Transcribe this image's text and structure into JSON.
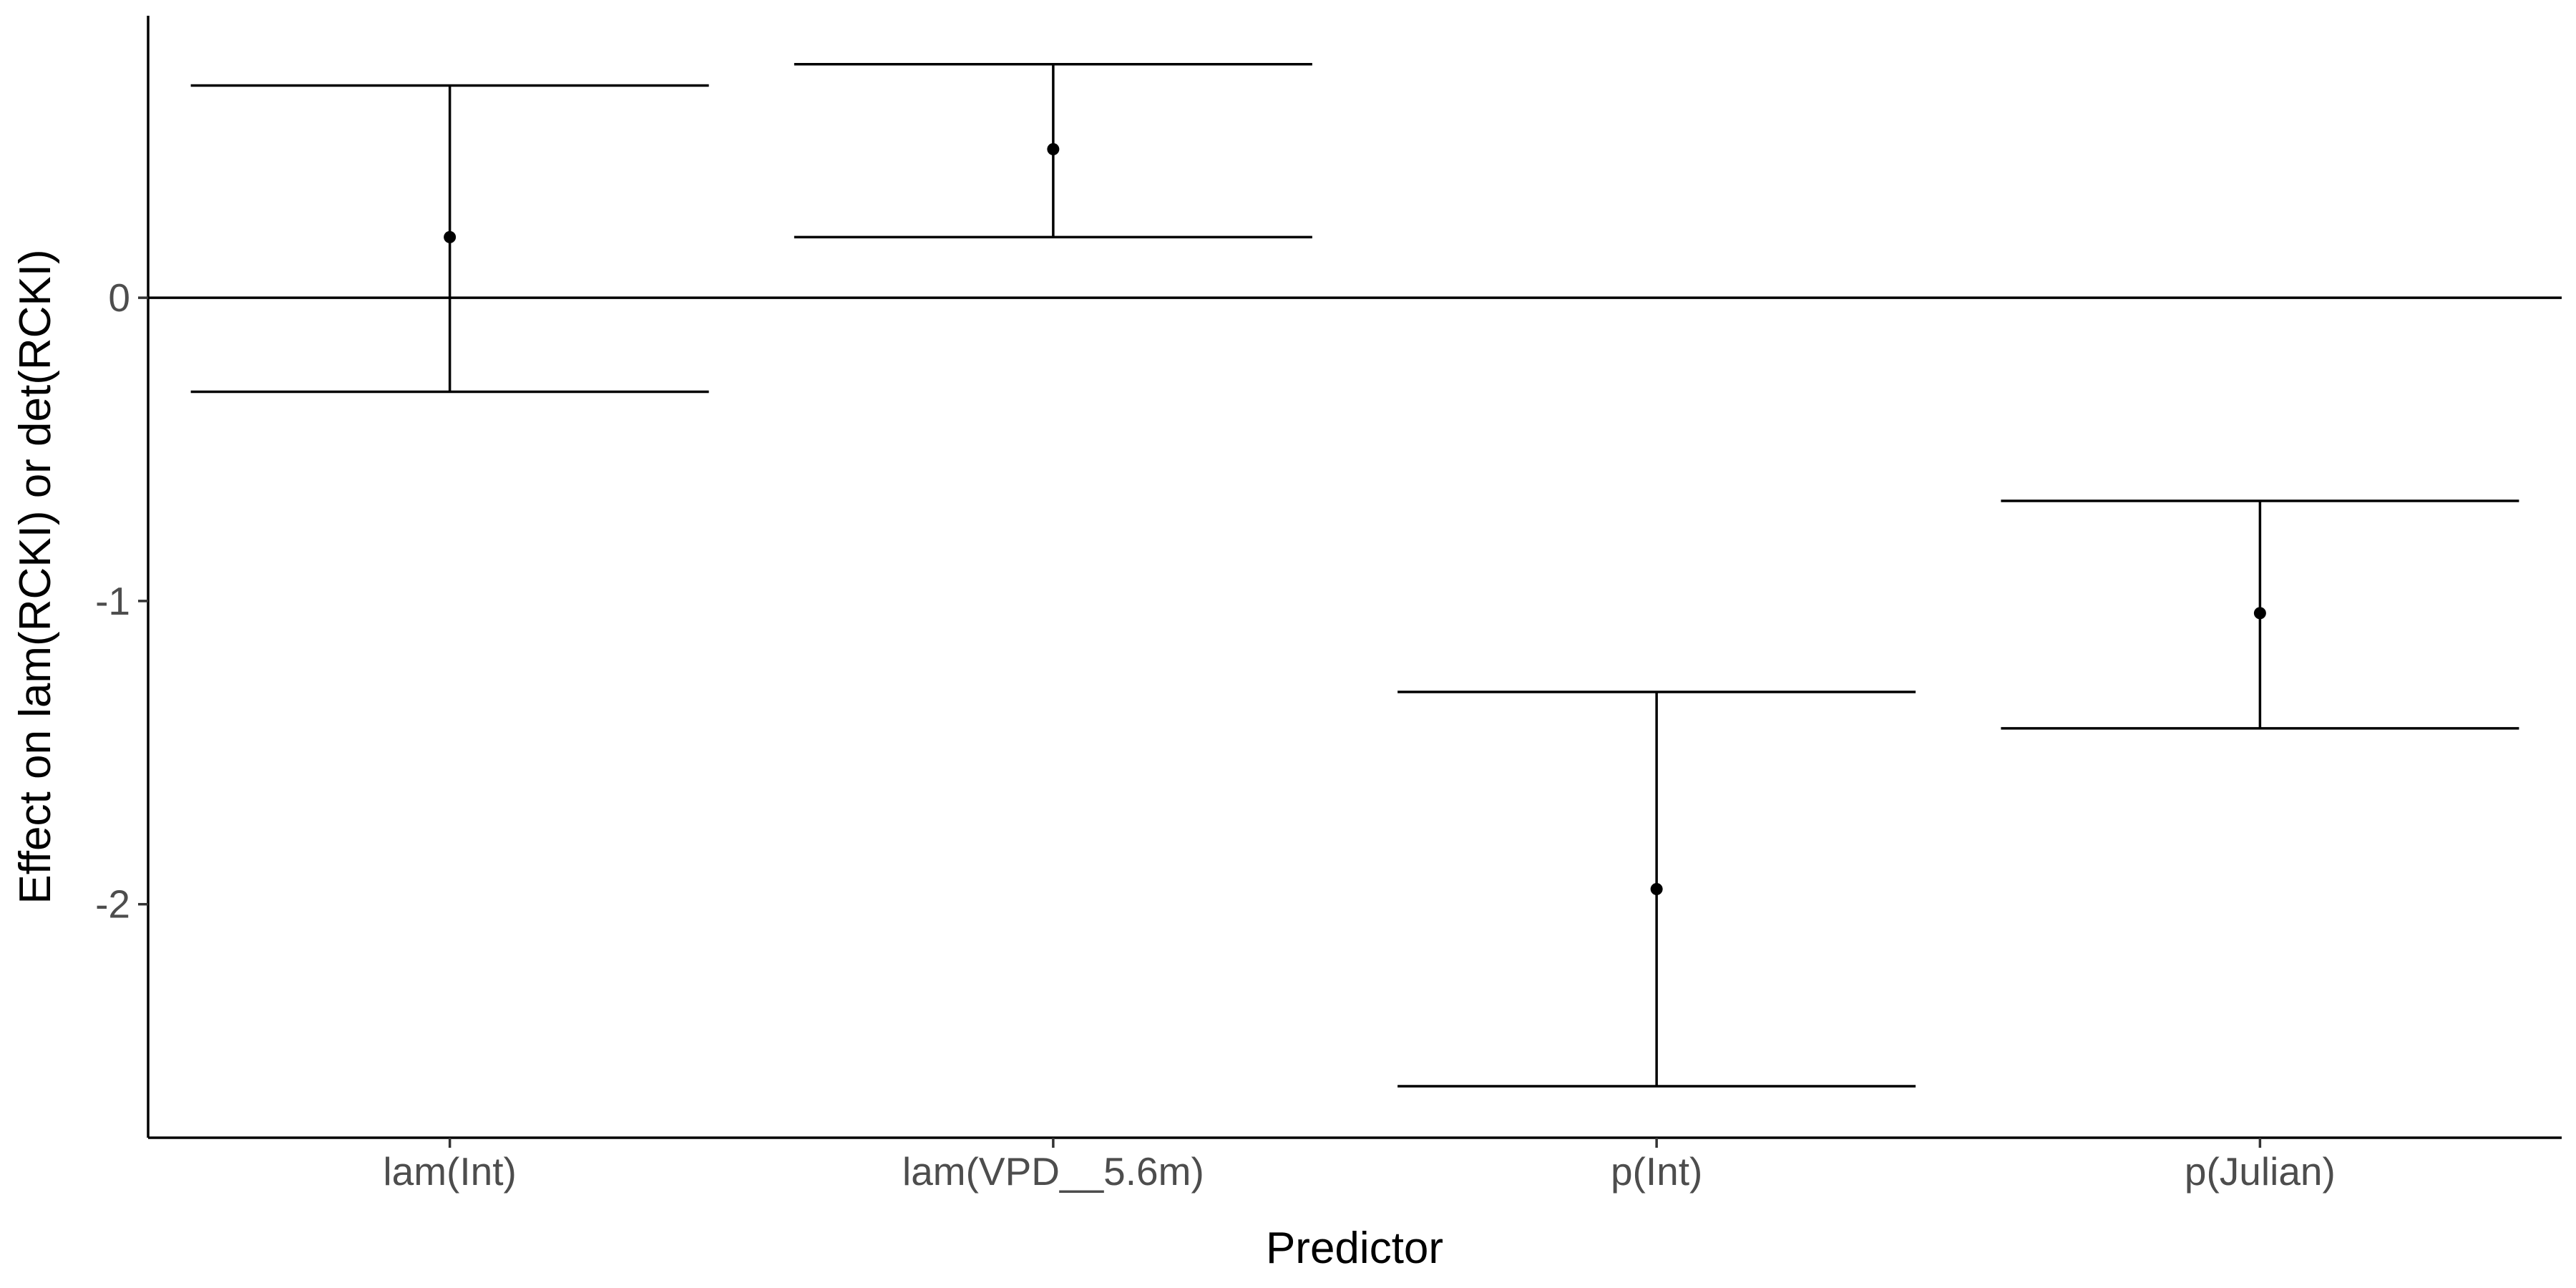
{
  "chart_data": {
    "type": "errorbar",
    "xlabel": "Predictor",
    "ylabel": "Effect on lam(RCKI) or det(RCKI)",
    "ylim": [
      -2.77,
      0.93
    ],
    "yticks": [
      0,
      -1,
      -2
    ],
    "reference_line": 0,
    "grid": false,
    "categories": [
      "lam(Int)",
      "lam(VPD__5.6m)",
      "p(Int)",
      "p(Julian)"
    ],
    "estimates": [
      0.2,
      0.49,
      -1.95,
      -1.04
    ],
    "lower": [
      -0.31,
      0.2,
      -2.6,
      -1.42
    ],
    "upper": [
      0.7,
      0.77,
      -1.3,
      -0.67
    ]
  }
}
